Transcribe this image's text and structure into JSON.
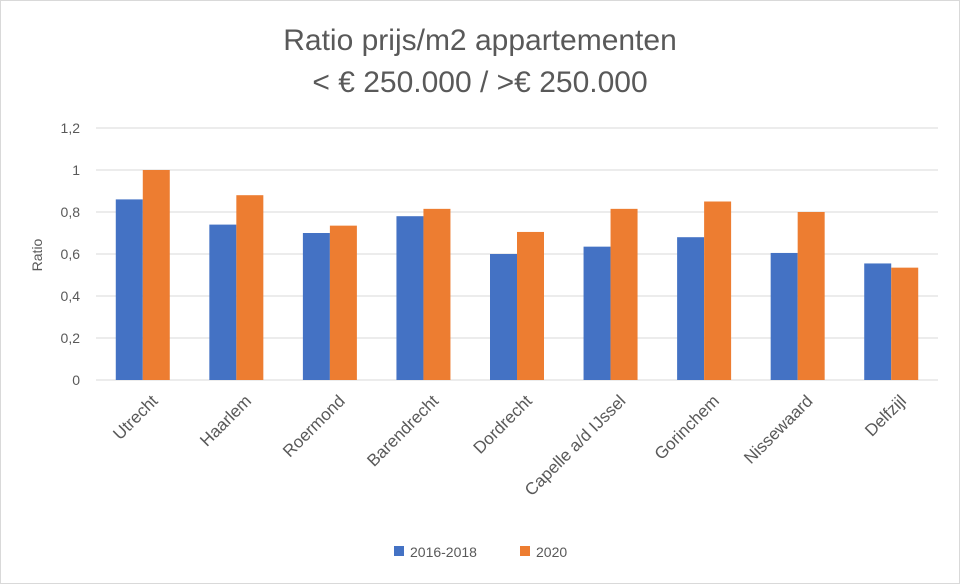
{
  "chart_data": {
    "type": "bar",
    "title_lines": [
      "Ratio prijs/m2 appartementen",
      "< € 250.000 / >€ 250.000"
    ],
    "xlabel": "",
    "ylabel": "Ratio",
    "ylim": [
      0,
      1.2
    ],
    "yticks": [
      0,
      0.2,
      0.4,
      0.6,
      0.8,
      1,
      1.2
    ],
    "ytick_labels": [
      "0",
      "0,2",
      "0,4",
      "0,6",
      "0,8",
      "1",
      "1,2"
    ],
    "categories": [
      "Utrecht",
      "Haarlem",
      "Roermond",
      "Barendrecht",
      "Dordrecht",
      "Capelle a/d IJssel",
      "Gorinchem",
      "Nissewaard",
      "Delfzijl"
    ],
    "series": [
      {
        "name": "2016-2018",
        "color": "#4472c4",
        "values": [
          0.86,
          0.74,
          0.7,
          0.78,
          0.6,
          0.635,
          0.68,
          0.605,
          0.555
        ]
      },
      {
        "name": "2020",
        "color": "#ed7d31",
        "values": [
          1.0,
          0.88,
          0.735,
          0.815,
          0.705,
          0.815,
          0.85,
          0.8,
          0.535
        ]
      }
    ],
    "grid": true,
    "legend": "bottom"
  }
}
